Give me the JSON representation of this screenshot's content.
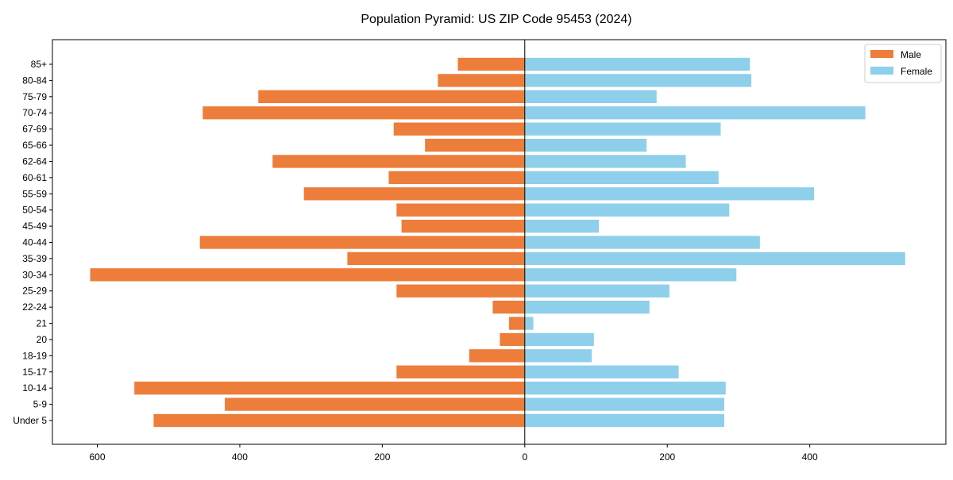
{
  "chart_data": {
    "type": "bar",
    "orientation": "horizontal",
    "title": "Population Pyramid: US ZIP Code 95453 (2024)",
    "xlabel": "",
    "ylabel": "",
    "xlim": [
      -663,
      591
    ],
    "xticks": [
      -600,
      -400,
      -200,
      0,
      200,
      400
    ],
    "xtick_labels": [
      "600",
      "400",
      "200",
      "0",
      "200",
      "400"
    ],
    "grid": false,
    "legend_position": "top-right",
    "categories": [
      "Under 5",
      "5-9",
      "10-14",
      "15-17",
      "18-19",
      "20",
      "21",
      "22-24",
      "25-29",
      "30-34",
      "35-39",
      "40-44",
      "45-49",
      "50-54",
      "55-59",
      "60-61",
      "62-64",
      "65-66",
      "67-69",
      "70-74",
      "75-79",
      "80-84",
      "85+"
    ],
    "series": [
      {
        "name": "Male",
        "color": "#ED7D3A",
        "values": [
          521,
          421,
          548,
          180,
          78,
          35,
          22,
          45,
          180,
          610,
          249,
          456,
          173,
          180,
          310,
          191,
          354,
          140,
          184,
          452,
          374,
          122,
          94
        ]
      },
      {
        "name": "Female",
        "color": "#8ECFEB",
        "values": [
          280,
          280,
          282,
          216,
          94,
          97,
          12,
          175,
          203,
          297,
          534,
          330,
          104,
          287,
          406,
          272,
          226,
          171,
          275,
          478,
          185,
          318,
          316
        ]
      }
    ]
  }
}
